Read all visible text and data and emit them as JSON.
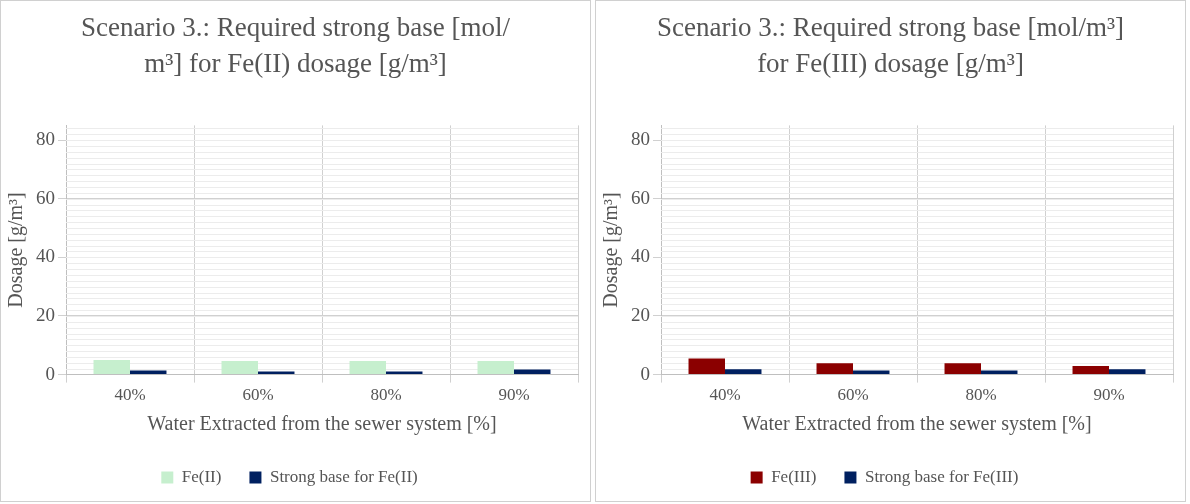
{
  "chart_data": [
    {
      "type": "bar",
      "title": "Scenario 3.: Required strong base [mol/ m³] for Fe(II) dosage [g/m³]",
      "xlabel": "Water Extracted from the sewer system [%]",
      "ylabel": "Dosage [g/m³]",
      "categories": [
        "40%",
        "60%",
        "80%",
        "90%"
      ],
      "series": [
        {
          "name": "Fe(II)",
          "color": "#c6efce",
          "values": [
            5.0,
            4.6,
            4.6,
            4.6
          ]
        },
        {
          "name": "Strong base for Fe(II)",
          "color": "#002060",
          "values": [
            1.4,
            1.1,
            1.1,
            1.7
          ]
        }
      ],
      "ylim": [
        0,
        85
      ],
      "yticks": [
        0,
        20,
        40,
        60,
        80
      ],
      "grid": true,
      "legend": "bottom"
    },
    {
      "type": "bar",
      "title": "Scenario 3.: Required strong base [mol/m³] for Fe(III) dosage [g/m³]",
      "xlabel": "Water Extracted from the sewer system [%]",
      "ylabel": "Dosage [g/m³]",
      "categories": [
        "40%",
        "60%",
        "80%",
        "90%"
      ],
      "series": [
        {
          "name": "Fe(III)",
          "color": "#8b0000",
          "values": [
            5.5,
            3.9,
            3.9,
            2.9
          ]
        },
        {
          "name": "Strong base for Fe(III)",
          "color": "#002060",
          "values": [
            1.8,
            1.4,
            1.4,
            1.8
          ]
        }
      ],
      "ylim": [
        0,
        85
      ],
      "yticks": [
        0,
        20,
        40,
        60,
        80
      ],
      "grid": true,
      "legend": "bottom"
    }
  ]
}
